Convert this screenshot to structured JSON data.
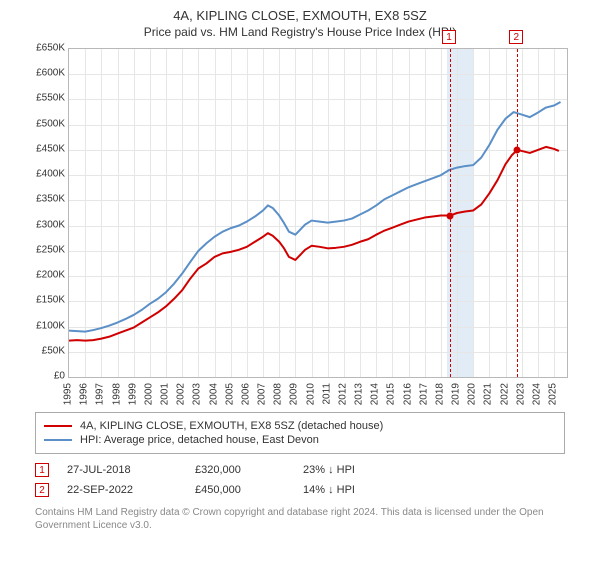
{
  "title": "4A, KIPLING CLOSE, EXMOUTH, EX8 5SZ",
  "subtitle": "Price paid vs. HM Land Registry's House Price Index (HPI)",
  "chart": {
    "type": "line",
    "xlim": [
      1995,
      2025.8
    ],
    "ylim": [
      0,
      650000
    ],
    "ytick_step": 50000,
    "xtick_step": 1,
    "yticklabels": [
      "£0",
      "£50K",
      "£100K",
      "£150K",
      "£200K",
      "£250K",
      "£300K",
      "£350K",
      "£400K",
      "£450K",
      "£500K",
      "£550K",
      "£600K",
      "£650K"
    ],
    "xticklabels": [
      "1995",
      "1996",
      "1997",
      "1998",
      "1999",
      "2000",
      "2001",
      "2002",
      "2003",
      "2004",
      "2005",
      "2006",
      "2007",
      "2008",
      "2009",
      "2010",
      "2011",
      "2012",
      "2013",
      "2014",
      "2015",
      "2016",
      "2017",
      "2018",
      "2019",
      "2020",
      "2021",
      "2022",
      "2023",
      "2024",
      "2025"
    ],
    "grid_color": "#e6e6e6",
    "border_color": "#b8b8b8",
    "background_color": "#ffffff",
    "highlight_band": {
      "xstart": 2018.4,
      "xend": 2020.0,
      "color": "rgba(173,201,230,0.35)"
    },
    "series": [
      {
        "name": "4A, KIPLING CLOSE, EXMOUTH, EX8 5SZ (detached house)",
        "color": "#d00000",
        "width": 2,
        "data": [
          [
            1995,
            72000
          ],
          [
            1995.5,
            73000
          ],
          [
            1996,
            72000
          ],
          [
            1996.5,
            73000
          ],
          [
            1997,
            76000
          ],
          [
            1997.5,
            80000
          ],
          [
            1998,
            86000
          ],
          [
            1998.5,
            92000
          ],
          [
            1999,
            98000
          ],
          [
            1999.5,
            108000
          ],
          [
            2000,
            118000
          ],
          [
            2000.5,
            128000
          ],
          [
            2001,
            140000
          ],
          [
            2001.5,
            155000
          ],
          [
            2002,
            172000
          ],
          [
            2002.5,
            195000
          ],
          [
            2003,
            215000
          ],
          [
            2003.5,
            225000
          ],
          [
            2004,
            238000
          ],
          [
            2004.5,
            245000
          ],
          [
            2005,
            248000
          ],
          [
            2005.5,
            252000
          ],
          [
            2006,
            258000
          ],
          [
            2006.5,
            268000
          ],
          [
            2007,
            278000
          ],
          [
            2007.3,
            285000
          ],
          [
            2007.6,
            280000
          ],
          [
            2008,
            268000
          ],
          [
            2008.3,
            255000
          ],
          [
            2008.6,
            238000
          ],
          [
            2009,
            232000
          ],
          [
            2009.3,
            242000
          ],
          [
            2009.6,
            252000
          ],
          [
            2010,
            260000
          ],
          [
            2010.5,
            258000
          ],
          [
            2011,
            255000
          ],
          [
            2011.5,
            256000
          ],
          [
            2012,
            258000
          ],
          [
            2012.5,
            262000
          ],
          [
            2013,
            268000
          ],
          [
            2013.5,
            273000
          ],
          [
            2014,
            282000
          ],
          [
            2014.5,
            290000
          ],
          [
            2015,
            296000
          ],
          [
            2015.5,
            302000
          ],
          [
            2016,
            308000
          ],
          [
            2016.5,
            312000
          ],
          [
            2017,
            316000
          ],
          [
            2017.5,
            318000
          ],
          [
            2018,
            320000
          ],
          [
            2018.566,
            320000
          ],
          [
            2019,
            325000
          ],
          [
            2019.5,
            328000
          ],
          [
            2020,
            330000
          ],
          [
            2020.5,
            342000
          ],
          [
            2021,
            364000
          ],
          [
            2021.5,
            390000
          ],
          [
            2022,
            422000
          ],
          [
            2022.4,
            440000
          ],
          [
            2022.725,
            450000
          ],
          [
            2023,
            448000
          ],
          [
            2023.5,
            444000
          ],
          [
            2024,
            450000
          ],
          [
            2024.5,
            456000
          ],
          [
            2025,
            452000
          ],
          [
            2025.3,
            448000
          ]
        ]
      },
      {
        "name": "HPI: Average price, detached house, East Devon",
        "color": "#5b8fc7",
        "width": 2,
        "data": [
          [
            1995,
            92000
          ],
          [
            1995.5,
            91000
          ],
          [
            1996,
            90000
          ],
          [
            1996.5,
            93000
          ],
          [
            1997,
            97000
          ],
          [
            1997.5,
            102000
          ],
          [
            1998,
            108000
          ],
          [
            1998.5,
            115000
          ],
          [
            1999,
            123000
          ],
          [
            1999.5,
            133000
          ],
          [
            2000,
            145000
          ],
          [
            2000.5,
            155000
          ],
          [
            2001,
            168000
          ],
          [
            2001.5,
            185000
          ],
          [
            2002,
            205000
          ],
          [
            2002.5,
            228000
          ],
          [
            2003,
            250000
          ],
          [
            2003.5,
            265000
          ],
          [
            2004,
            278000
          ],
          [
            2004.5,
            288000
          ],
          [
            2005,
            295000
          ],
          [
            2005.5,
            300000
          ],
          [
            2006,
            308000
          ],
          [
            2006.5,
            318000
          ],
          [
            2007,
            330000
          ],
          [
            2007.3,
            340000
          ],
          [
            2007.6,
            335000
          ],
          [
            2008,
            320000
          ],
          [
            2008.3,
            305000
          ],
          [
            2008.6,
            288000
          ],
          [
            2009,
            282000
          ],
          [
            2009.3,
            292000
          ],
          [
            2009.6,
            302000
          ],
          [
            2010,
            310000
          ],
          [
            2010.5,
            308000
          ],
          [
            2011,
            306000
          ],
          [
            2011.5,
            308000
          ],
          [
            2012,
            310000
          ],
          [
            2012.5,
            314000
          ],
          [
            2013,
            322000
          ],
          [
            2013.5,
            330000
          ],
          [
            2014,
            340000
          ],
          [
            2014.5,
            352000
          ],
          [
            2015,
            360000
          ],
          [
            2015.5,
            368000
          ],
          [
            2016,
            376000
          ],
          [
            2016.5,
            382000
          ],
          [
            2017,
            388000
          ],
          [
            2017.5,
            394000
          ],
          [
            2018,
            400000
          ],
          [
            2018.5,
            410000
          ],
          [
            2019,
            415000
          ],
          [
            2019.5,
            418000
          ],
          [
            2020,
            420000
          ],
          [
            2020.5,
            435000
          ],
          [
            2021,
            460000
          ],
          [
            2021.5,
            490000
          ],
          [
            2022,
            512000
          ],
          [
            2022.5,
            525000
          ],
          [
            2023,
            520000
          ],
          [
            2023.5,
            515000
          ],
          [
            2024,
            524000
          ],
          [
            2024.5,
            534000
          ],
          [
            2025,
            538000
          ],
          [
            2025.4,
            545000
          ]
        ]
      }
    ],
    "sale_markers": [
      {
        "label": "1",
        "x": 2018.566,
        "y": 320000,
        "dot_color": "#d00000",
        "box_top": -18
      },
      {
        "label": "2",
        "x": 2022.725,
        "y": 450000,
        "dot_color": "#d00000",
        "box_top": -18
      }
    ],
    "label_fontsize": 10,
    "title_fontsize": 13
  },
  "legend": {
    "border_color": "#aaaaaa",
    "items": [
      {
        "color": "#d00000",
        "label": "4A, KIPLING CLOSE, EXMOUTH, EX8 5SZ (detached house)"
      },
      {
        "color": "#5b8fc7",
        "label": "HPI: Average price, detached house, East Devon"
      }
    ]
  },
  "sales": [
    {
      "marker": "1",
      "date": "27-JUL-2018",
      "price": "£320,000",
      "delta": "23% ↓ HPI"
    },
    {
      "marker": "2",
      "date": "22-SEP-2022",
      "price": "£450,000",
      "delta": "14% ↓ HPI"
    }
  ],
  "attribution": "Contains HM Land Registry data © Crown copyright and database right 2024. This data is licensed under the Open Government Licence v3.0."
}
